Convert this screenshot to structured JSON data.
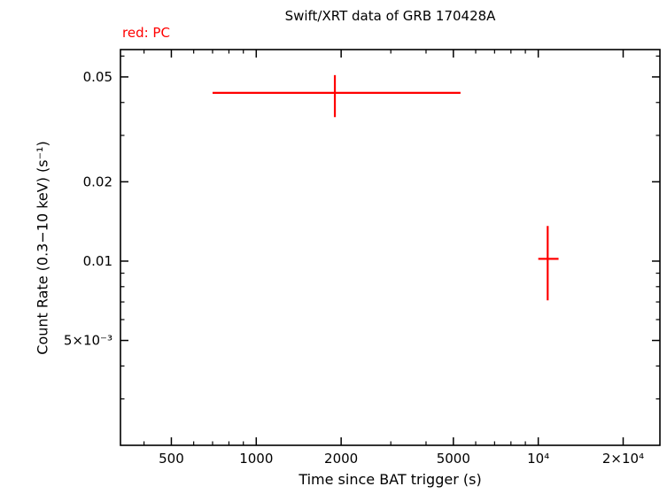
{
  "chart_data": {
    "type": "scatter",
    "title": "Swift/XRT data of GRB 170428A",
    "legend": "red: PC",
    "xlabel": "Time since BAT trigger (s)",
    "ylabel": "Count Rate (0.3−10 keV) (s⁻¹)",
    "x_scale": "log",
    "y_scale": "log",
    "xlim": [
      330,
      27000
    ],
    "ylim": [
      0.002,
      0.0635
    ],
    "grid": false,
    "legend_position": "top-left",
    "frame_color": "#000000",
    "x_ticks": [
      {
        "value": 500,
        "label": "500"
      },
      {
        "value": 1000,
        "label": "1000"
      },
      {
        "value": 2000,
        "label": "2000"
      },
      {
        "value": 5000,
        "label": "5000"
      },
      {
        "value": 10000,
        "label": "10⁴"
      },
      {
        "value": 20000,
        "label": "2×10⁴"
      }
    ],
    "y_ticks": [
      {
        "value": 0.05,
        "label": "0.05"
      },
      {
        "value": 0.02,
        "label": "0.02"
      },
      {
        "value": 0.01,
        "label": "0.01"
      },
      {
        "value": 0.005,
        "label": "5×10⁻³"
      }
    ],
    "series": [
      {
        "name": "PC",
        "color": "#ff0000",
        "points": [
          {
            "t": 1900,
            "t_min": 700,
            "t_max": 5300,
            "rate": 0.0435,
            "rate_min": 0.0352,
            "rate_max": 0.0508
          },
          {
            "t": 10800,
            "t_min": 10000,
            "t_max": 11800,
            "rate": 0.0102,
            "rate_min": 0.0071,
            "rate_max": 0.0136
          }
        ]
      }
    ]
  }
}
